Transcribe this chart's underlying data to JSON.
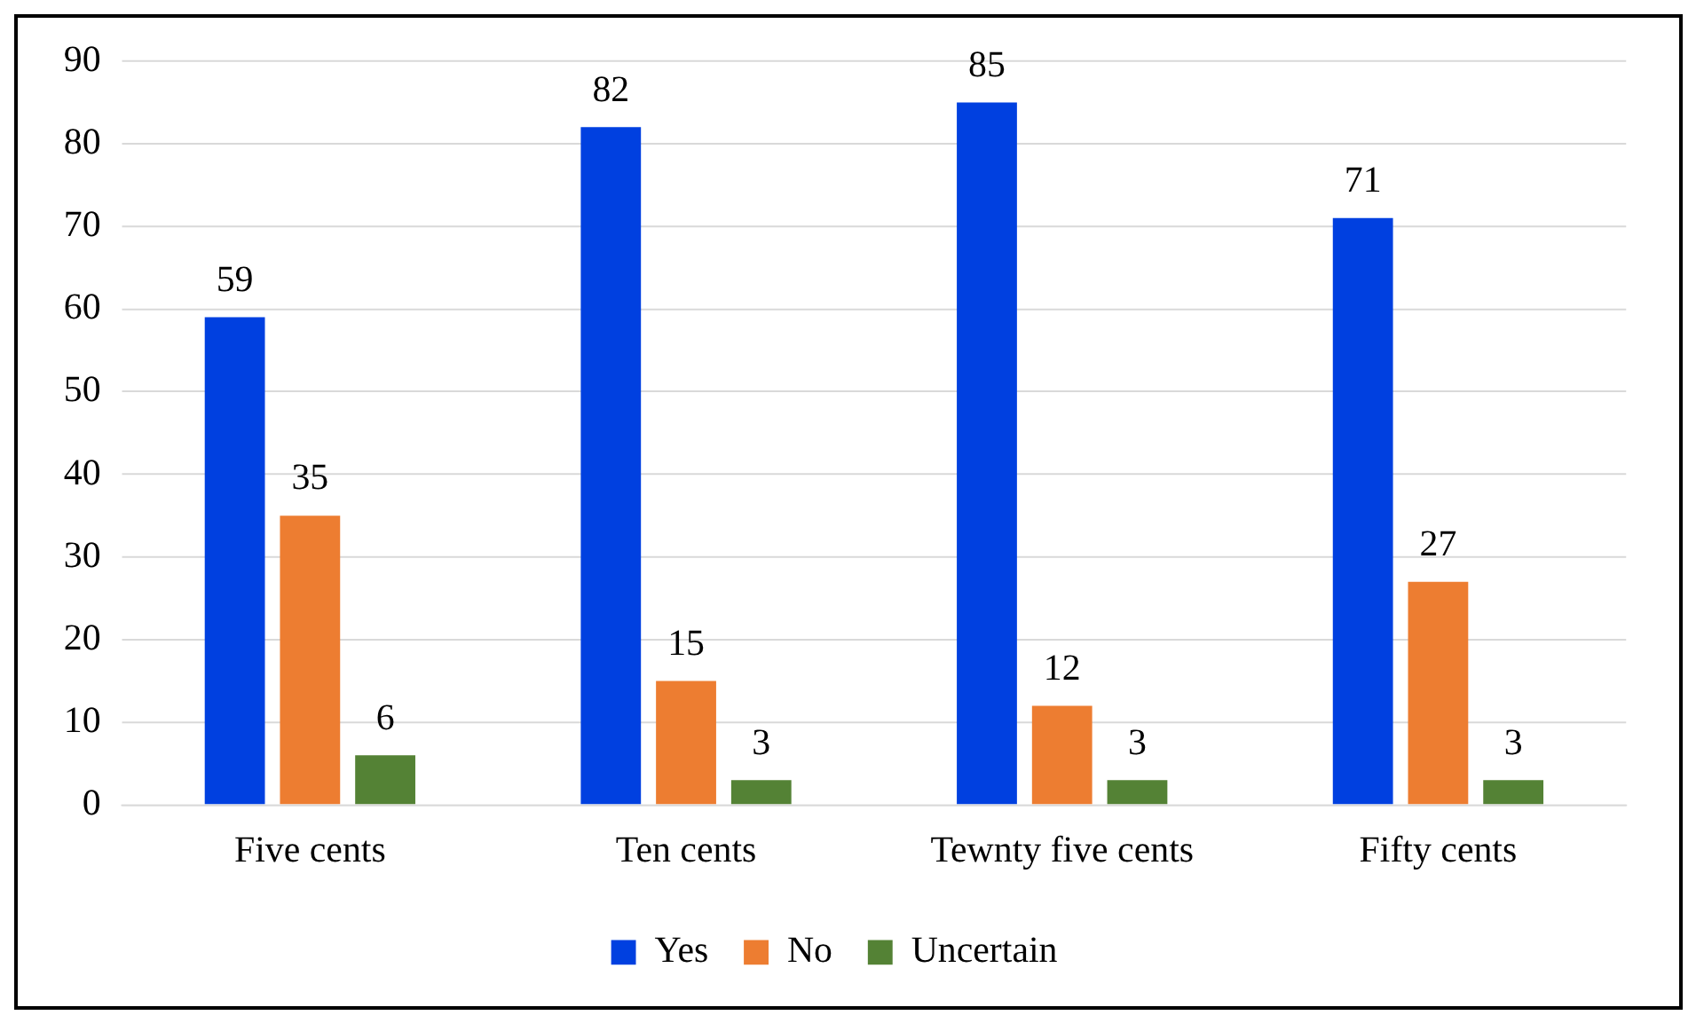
{
  "chart_data": {
    "type": "bar",
    "categories": [
      "Five cents",
      "Ten cents",
      "Tewnty five cents",
      "Fifty cents"
    ],
    "series": [
      {
        "name": "Yes",
        "color": "#0040e0",
        "values": [
          59,
          82,
          85,
          71
        ]
      },
      {
        "name": "No",
        "color": "#ed7d31",
        "values": [
          35,
          15,
          12,
          27
        ]
      },
      {
        "name": "Uncertain",
        "color": "#548235",
        "values": [
          6,
          3,
          3,
          3
        ]
      }
    ],
    "ylim": [
      0,
      90
    ],
    "yticks": [
      0,
      10,
      20,
      30,
      40,
      50,
      60,
      70,
      80,
      90
    ],
    "grid": "y",
    "legend": "bottom",
    "data_labels": true
  }
}
